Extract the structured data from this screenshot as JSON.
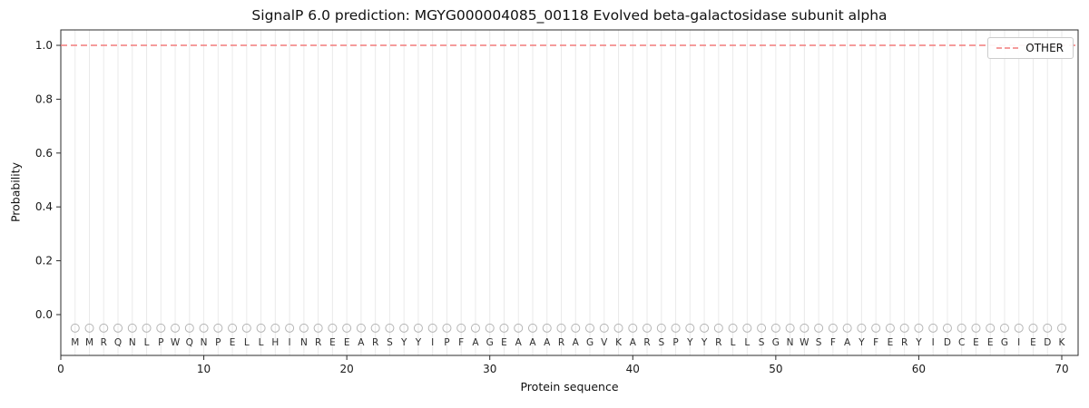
{
  "chart_data": {
    "type": "line",
    "title": "SignalP 6.0 prediction: MGYG000004085_00118 Evolved beta-galactosidase subunit alpha",
    "xlabel": "Protein sequence",
    "ylabel": "Probability",
    "xlim": [
      0,
      71.1
    ],
    "ylim": [
      -0.15,
      1.06
    ],
    "xticks": [
      0,
      10,
      20,
      30,
      40,
      50,
      60,
      70
    ],
    "yticks": [
      "0.0",
      "0.2",
      "0.4",
      "0.6",
      "0.8",
      "1.0"
    ],
    "grid": {
      "vertical_per_residue": true,
      "color": "#eaeaea"
    },
    "legend": {
      "position": "upper-right",
      "entries": [
        {
          "label": "OTHER",
          "color": "#f27c7c",
          "linestyle": "dashed"
        }
      ]
    },
    "series": [
      {
        "name": "OTHER",
        "color": "#f27c7c",
        "linestyle": "dashed",
        "y_constant": 1.0,
        "x_range": [
          0,
          71.1
        ]
      }
    ],
    "residue_markers": {
      "marker": "circle",
      "y": -0.05,
      "stroke": "#b5b5b5"
    },
    "sequence": [
      "M",
      "M",
      "R",
      "Q",
      "N",
      "L",
      "P",
      "W",
      "Q",
      "N",
      "P",
      "E",
      "L",
      "L",
      "H",
      "I",
      "N",
      "R",
      "E",
      "E",
      "A",
      "R",
      "S",
      "Y",
      "Y",
      "I",
      "P",
      "F",
      "A",
      "G",
      "E",
      "A",
      "A",
      "A",
      "R",
      "A",
      "G",
      "V",
      "K",
      "A",
      "R",
      "S",
      "P",
      "Y",
      "Y",
      "R",
      "L",
      "L",
      "S",
      "G",
      "N",
      "W",
      "S",
      "F",
      "A",
      "Y",
      "F",
      "E",
      "R",
      "Y",
      "I",
      "D",
      "C",
      "E",
      "E",
      "G",
      "I",
      "E",
      "D",
      "K"
    ]
  }
}
